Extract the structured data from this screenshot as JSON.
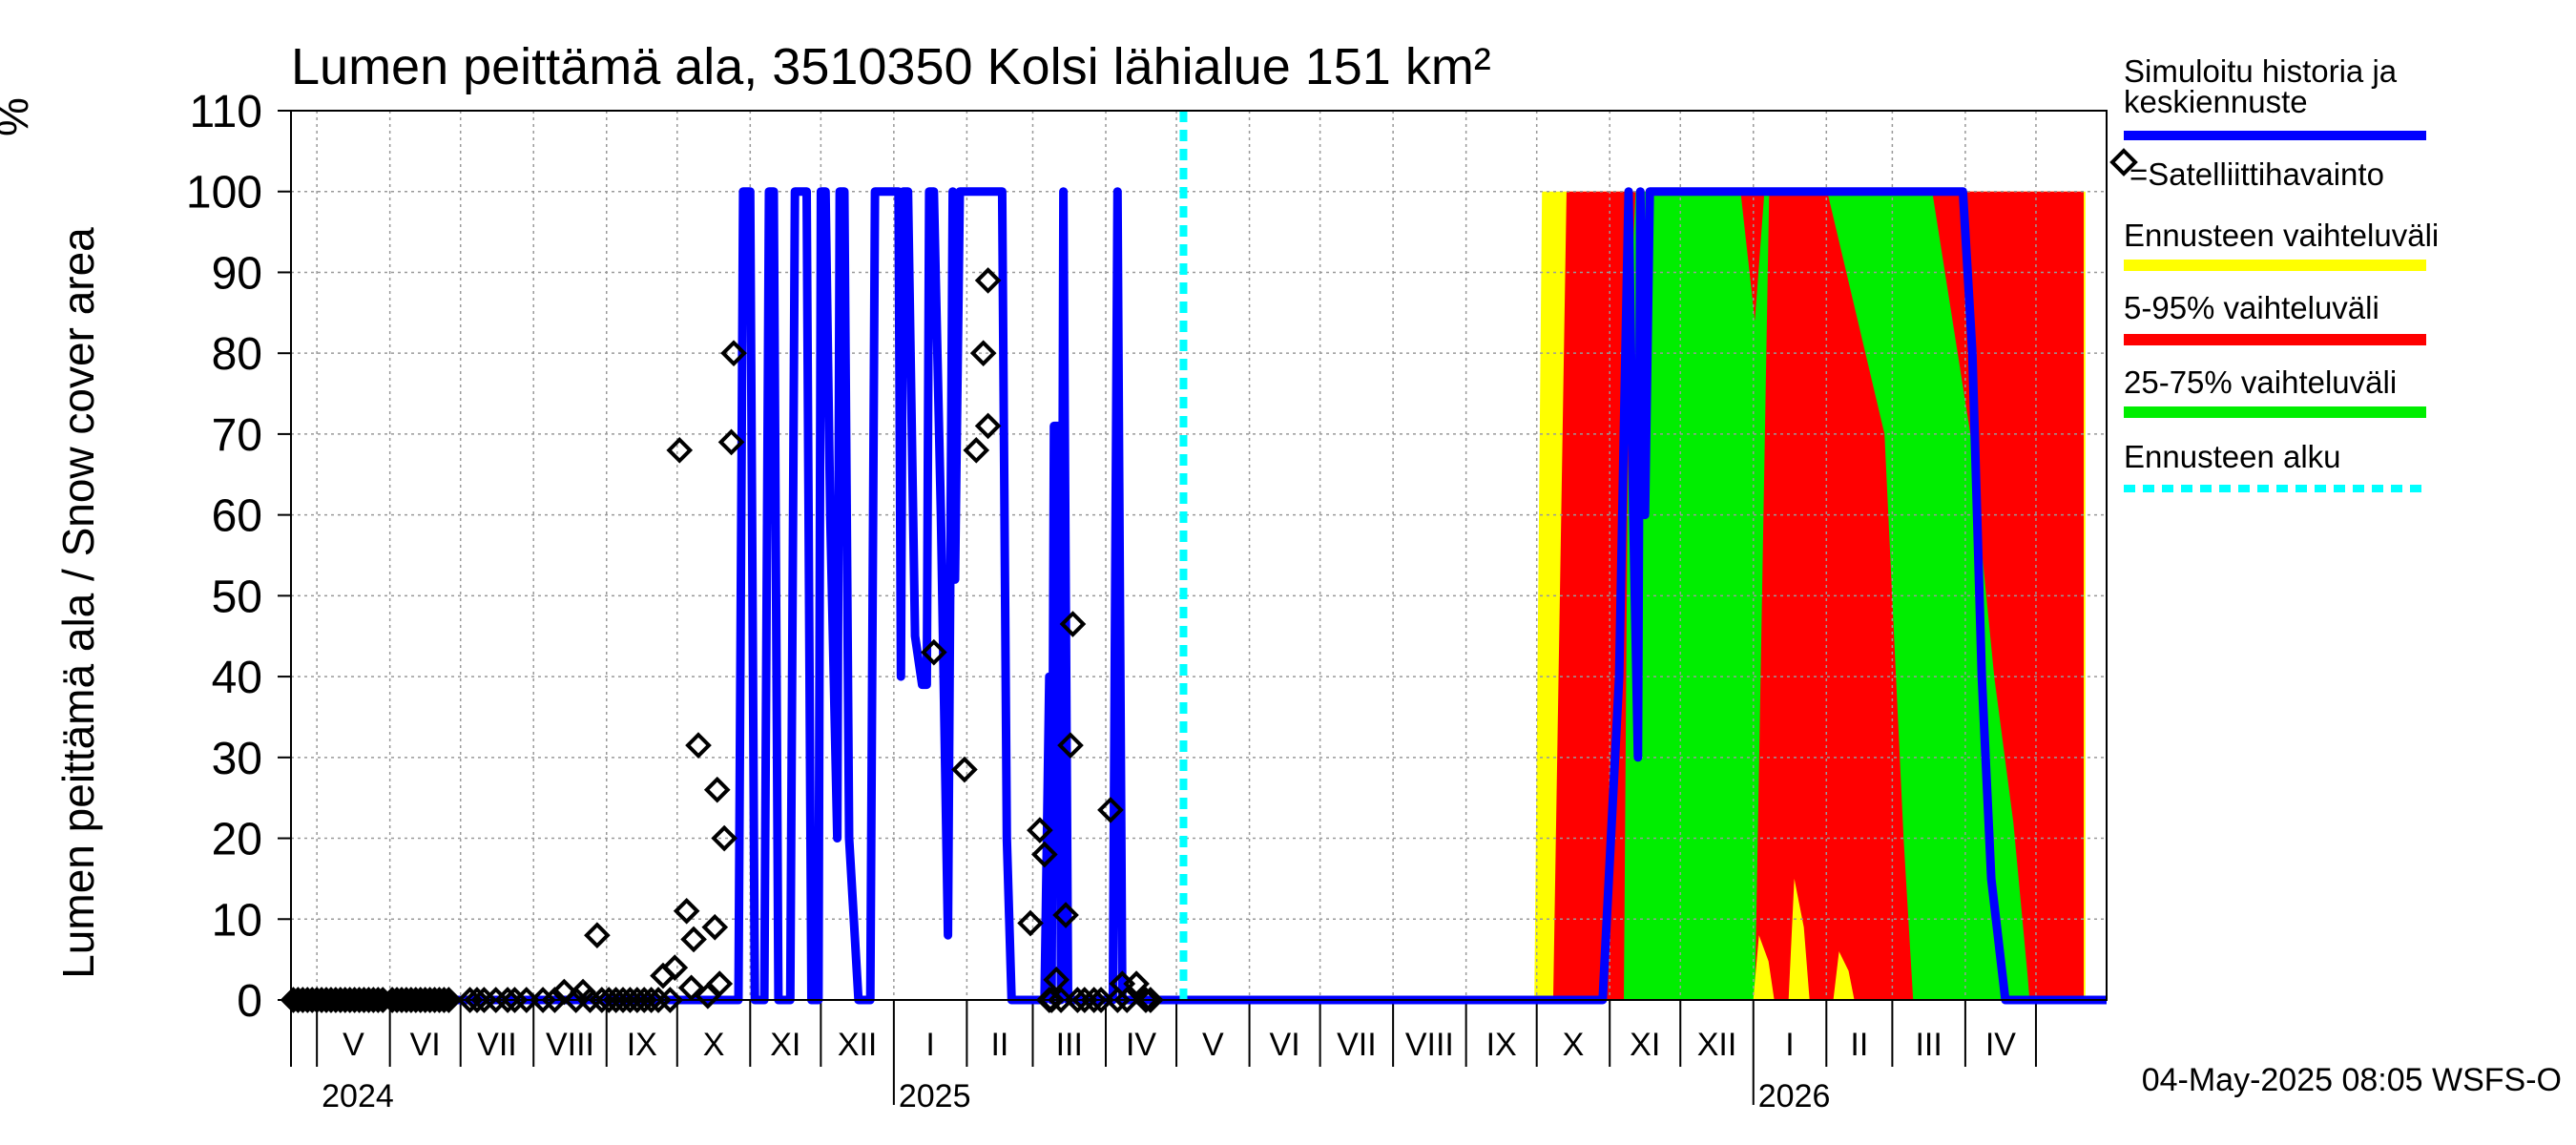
{
  "chart_data": {
    "type": "line",
    "title": "Lumen peittämä ala, 3510350 Kolsi lähialue 151 km²",
    "ylabel": "Lumen peittämä ala / Snow cover area",
    "yunit": "%",
    "ylim": [
      0,
      110
    ],
    "yticks": [
      0,
      10,
      20,
      30,
      40,
      50,
      60,
      70,
      80,
      90,
      100,
      110
    ],
    "x_start": "2024-04-20",
    "x_end": "2026-05-31",
    "forecast_start": "2025-05-04",
    "months": [
      {
        "label": "V",
        "start": "2024-05-01"
      },
      {
        "label": "VI",
        "start": "2024-06-01"
      },
      {
        "label": "VII",
        "start": "2024-07-01"
      },
      {
        "label": "VIII",
        "start": "2024-08-01"
      },
      {
        "label": "IX",
        "start": "2024-09-01"
      },
      {
        "label": "X",
        "start": "2024-10-01"
      },
      {
        "label": "XI",
        "start": "2024-11-01"
      },
      {
        "label": "XII",
        "start": "2024-12-01"
      },
      {
        "label": "I",
        "start": "2025-01-01"
      },
      {
        "label": "II",
        "start": "2025-02-01"
      },
      {
        "label": "III",
        "start": "2025-03-01"
      },
      {
        "label": "IV",
        "start": "2025-04-01"
      },
      {
        "label": "V",
        "start": "2025-05-01"
      },
      {
        "label": "VI",
        "start": "2025-06-01"
      },
      {
        "label": "VII",
        "start": "2025-07-01"
      },
      {
        "label": "VIII",
        "start": "2025-08-01"
      },
      {
        "label": "IX",
        "start": "2025-09-01"
      },
      {
        "label": "X",
        "start": "2025-10-01"
      },
      {
        "label": "XI",
        "start": "2025-11-01"
      },
      {
        "label": "XII",
        "start": "2025-12-01"
      },
      {
        "label": "I",
        "start": "2026-01-01"
      },
      {
        "label": "II",
        "start": "2026-02-01"
      },
      {
        "label": "III",
        "start": "2026-03-01"
      },
      {
        "label": "IV",
        "start": "2026-04-01"
      },
      {
        "label": "",
        "start": "2026-05-01"
      }
    ],
    "years": [
      {
        "label": "2024",
        "date": "2024-05-01"
      },
      {
        "label": "2025",
        "date": "2025-01-01"
      },
      {
        "label": "2026",
        "date": "2026-01-01"
      }
    ],
    "history_series": {
      "name": "Simuloitu historia ja keskiennuste",
      "color": "#0000ff",
      "points": [
        [
          "2024-04-20",
          0
        ],
        [
          "2024-10-27",
          0
        ],
        [
          "2024-10-29",
          100
        ],
        [
          "2024-11-01",
          100
        ],
        [
          "2024-11-03",
          0
        ],
        [
          "2024-11-07",
          0
        ],
        [
          "2024-11-09",
          100
        ],
        [
          "2024-11-11",
          100
        ],
        [
          "2024-11-13",
          0
        ],
        [
          "2024-11-18",
          0
        ],
        [
          "2024-11-20",
          100
        ],
        [
          "2024-11-25",
          100
        ],
        [
          "2024-11-27",
          0
        ],
        [
          "2024-11-30",
          0
        ],
        [
          "2024-12-01",
          100
        ],
        [
          "2024-12-03",
          100
        ],
        [
          "2024-12-05",
          60
        ],
        [
          "2024-12-08",
          20
        ],
        [
          "2024-12-09",
          100
        ],
        [
          "2024-12-11",
          100
        ],
        [
          "2024-12-13",
          20
        ],
        [
          "2024-12-17",
          0
        ],
        [
          "2024-12-22",
          0
        ],
        [
          "2024-12-24",
          100
        ],
        [
          "2025-01-03",
          100
        ],
        [
          "2025-01-04",
          40
        ],
        [
          "2025-01-05",
          100
        ],
        [
          "2025-01-07",
          100
        ],
        [
          "2025-01-10",
          45
        ],
        [
          "2025-01-13",
          39
        ],
        [
          "2025-01-15",
          39
        ],
        [
          "2025-01-16",
          100
        ],
        [
          "2025-01-18",
          100
        ],
        [
          "2025-01-21",
          60
        ],
        [
          "2025-01-24",
          8
        ],
        [
          "2025-01-26",
          100
        ],
        [
          "2025-01-27",
          52
        ],
        [
          "2025-01-29",
          100
        ],
        [
          "2025-02-16",
          100
        ],
        [
          "2025-02-18",
          20
        ],
        [
          "2025-02-20",
          0
        ],
        [
          "2025-03-06",
          0
        ],
        [
          "2025-03-08",
          40
        ],
        [
          "2025-03-09",
          0
        ],
        [
          "2025-03-10",
          71
        ],
        [
          "2025-03-12",
          71
        ],
        [
          "2025-03-13",
          0
        ],
        [
          "2025-03-14",
          100
        ],
        [
          "2025-03-16",
          0
        ],
        [
          "2025-03-19",
          0
        ],
        [
          "2025-03-20",
          0
        ],
        [
          "2025-04-04",
          0
        ],
        [
          "2025-04-06",
          100
        ],
        [
          "2025-04-08",
          0
        ],
        [
          "2025-10-01",
          0
        ],
        [
          "2025-10-29",
          0
        ],
        [
          "2025-11-05",
          40
        ],
        [
          "2025-11-07",
          70
        ],
        [
          "2025-11-09",
          100
        ],
        [
          "2025-11-11",
          60
        ],
        [
          "2025-11-13",
          30
        ],
        [
          "2025-11-14",
          100
        ],
        [
          "2025-11-16",
          60
        ],
        [
          "2025-11-18",
          100
        ],
        [
          "2025-11-20",
          100
        ],
        [
          "2026-03-31",
          100
        ],
        [
          "2026-04-04",
          80
        ],
        [
          "2026-04-08",
          40
        ],
        [
          "2026-04-12",
          15
        ],
        [
          "2026-04-18",
          0
        ],
        [
          "2026-05-31",
          0
        ]
      ]
    },
    "observations": {
      "name": "=Satelliittihavainto",
      "points": [
        [
          "2024-04-21",
          0
        ],
        [
          "2024-04-23",
          0
        ],
        [
          "2024-04-25",
          0
        ],
        [
          "2024-04-27",
          0
        ],
        [
          "2024-04-29",
          0
        ],
        [
          "2024-05-01",
          0
        ],
        [
          "2024-05-03",
          0
        ],
        [
          "2024-05-05",
          0
        ],
        [
          "2024-05-07",
          0
        ],
        [
          "2024-05-09",
          0
        ],
        [
          "2024-05-11",
          0
        ],
        [
          "2024-05-13",
          0
        ],
        [
          "2024-05-15",
          0
        ],
        [
          "2024-05-17",
          0
        ],
        [
          "2024-05-19",
          0
        ],
        [
          "2024-05-21",
          0
        ],
        [
          "2024-05-23",
          0
        ],
        [
          "2024-05-25",
          0
        ],
        [
          "2024-05-27",
          0
        ],
        [
          "2024-05-29",
          0
        ],
        [
          "2024-06-02",
          0
        ],
        [
          "2024-06-04",
          0
        ],
        [
          "2024-06-06",
          0
        ],
        [
          "2024-06-08",
          0
        ],
        [
          "2024-06-10",
          0
        ],
        [
          "2024-06-12",
          0
        ],
        [
          "2024-06-14",
          0
        ],
        [
          "2024-06-16",
          0
        ],
        [
          "2024-06-18",
          0
        ],
        [
          "2024-06-20",
          0
        ],
        [
          "2024-06-22",
          0
        ],
        [
          "2024-06-24",
          0
        ],
        [
          "2024-06-26",
          0
        ],
        [
          "2024-07-05",
          0
        ],
        [
          "2024-07-08",
          0
        ],
        [
          "2024-07-11",
          0
        ],
        [
          "2024-07-16",
          0
        ],
        [
          "2024-07-21",
          0
        ],
        [
          "2024-07-24",
          0
        ],
        [
          "2024-07-29",
          0
        ],
        [
          "2024-08-05",
          0
        ],
        [
          "2024-08-10",
          0
        ],
        [
          "2024-08-14",
          1
        ],
        [
          "2024-08-19",
          0
        ],
        [
          "2024-08-22",
          1
        ],
        [
          "2024-08-25",
          0
        ],
        [
          "2024-08-28",
          8
        ],
        [
          "2024-08-30",
          0
        ],
        [
          "2024-09-02",
          0
        ],
        [
          "2024-09-05",
          0
        ],
        [
          "2024-09-08",
          0
        ],
        [
          "2024-09-11",
          0
        ],
        [
          "2024-09-14",
          0
        ],
        [
          "2024-09-17",
          0
        ],
        [
          "2024-09-20",
          0
        ],
        [
          "2024-09-23",
          0
        ],
        [
          "2024-09-25",
          3
        ],
        [
          "2024-09-28",
          0
        ],
        [
          "2024-09-30",
          4
        ],
        [
          "2024-10-02",
          68
        ],
        [
          "2024-10-05",
          11
        ],
        [
          "2024-10-07",
          1.5
        ],
        [
          "2024-10-08",
          7.5
        ],
        [
          "2024-10-10",
          31.5
        ],
        [
          "2024-10-14",
          0.5
        ],
        [
          "2024-10-17",
          9
        ],
        [
          "2024-10-18",
          26
        ],
        [
          "2024-10-19",
          2
        ],
        [
          "2024-10-21",
          20
        ],
        [
          "2024-10-24",
          69
        ],
        [
          "2024-10-25",
          80
        ],
        [
          "2025-01-18",
          43
        ],
        [
          "2025-01-31",
          28.5
        ],
        [
          "2025-02-05",
          68
        ],
        [
          "2025-02-08",
          80
        ],
        [
          "2025-02-10",
          71
        ],
        [
          "2025-02-10",
          89
        ],
        [
          "2025-02-28",
          9.5
        ],
        [
          "2025-03-04",
          21
        ],
        [
          "2025-03-06",
          18
        ],
        [
          "2025-03-08",
          0
        ],
        [
          "2025-03-09",
          0
        ],
        [
          "2025-03-11",
          2.5
        ],
        [
          "2025-03-13",
          0
        ],
        [
          "2025-03-15",
          10.5
        ],
        [
          "2025-03-17",
          31.5
        ],
        [
          "2025-03-18",
          46.5
        ],
        [
          "2025-03-20",
          0
        ],
        [
          "2025-03-23",
          0
        ],
        [
          "2025-03-27",
          0
        ],
        [
          "2025-03-30",
          0
        ],
        [
          "2025-04-03",
          23.5
        ],
        [
          "2025-04-06",
          0
        ],
        [
          "2025-04-08",
          2
        ],
        [
          "2025-04-10",
          0
        ],
        [
          "2025-04-14",
          2
        ],
        [
          "2025-04-18",
          0
        ],
        [
          "2025-04-20",
          0
        ]
      ]
    },
    "forecast_bands": {
      "yellow_start": "2025-09-30",
      "red_start": "2025-10-08",
      "green_start": "2025-11-07",
      "full_cover_start": "2025-11-12",
      "melt_start": "2026-03-22",
      "melt_end": "2026-05-22"
    },
    "legend": [
      {
        "label": "Simuloitu historia ja keskiennuste",
        "color": "#0000ff",
        "style": "line"
      },
      {
        "label": "=Satelliittihavainto",
        "color": "#000000",
        "style": "diamond"
      },
      {
        "label": "Ennusteen vaihteluväli",
        "color": "#ffff00",
        "style": "line"
      },
      {
        "label": "5-95% vaihteluväli",
        "color": "#ff0000",
        "style": "line"
      },
      {
        "label": "25-75% vaihteluväli",
        "color": "#00ee00",
        "style": "line"
      },
      {
        "label": "Ennusteen alku",
        "color": "#00ffff",
        "style": "dashed"
      }
    ]
  },
  "colors": {
    "history": "#0000ff",
    "yellow": "#ffff00",
    "red": "#ff0000",
    "green": "#00ee00",
    "forecast_line": "#00ffff",
    "grid": "#999999"
  },
  "footer": "04-May-2025 08:05 WSFS-O"
}
